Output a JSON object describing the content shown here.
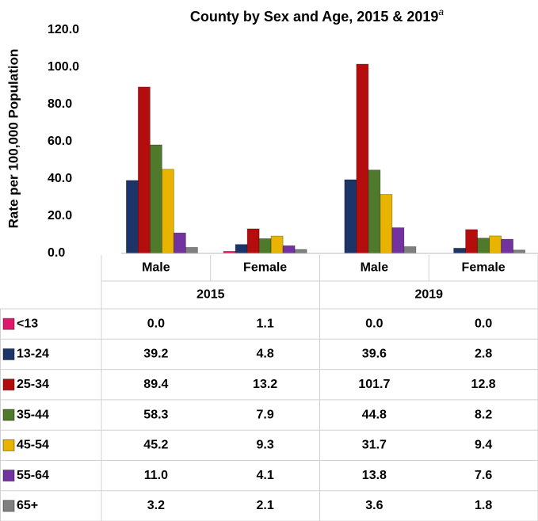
{
  "chart_data": {
    "type": "bar",
    "title": "County by Sex and Age, 2015 & 2019",
    "title_superscript": "a",
    "y_label": "Rate per 100,000 Population",
    "categories": [
      "Male",
      "Female",
      "Male",
      "Female"
    ],
    "groups": [
      "2015",
      "2019"
    ],
    "ylim": [
      0,
      120
    ],
    "yticks": [
      {
        "value": 0,
        "label": "0.0"
      },
      {
        "value": 20,
        "label": "20.0"
      },
      {
        "value": 40,
        "label": "40.0"
      },
      {
        "value": 60,
        "label": "60.0"
      },
      {
        "value": 80,
        "label": "80.0"
      },
      {
        "value": 100,
        "label": "100.0"
      },
      {
        "value": 120,
        "label": "120.0"
      }
    ],
    "series": [
      {
        "name": "<13",
        "color": "#e0186c",
        "values": [
          0,
          1.1,
          0,
          0
        ],
        "value_labels": [
          "0.0",
          "1.1",
          "0.0",
          "0.0"
        ]
      },
      {
        "name": "13-24",
        "color": "#1c3468",
        "values": [
          39.2,
          4.8,
          39.6,
          2.8
        ],
        "value_labels": [
          "39.2",
          "4.8",
          "39.6",
          "2.8"
        ]
      },
      {
        "name": "25-34",
        "color": "#b50d0d",
        "values": [
          89.4,
          13.2,
          101.7,
          12.8
        ],
        "value_labels": [
          "89.4",
          "13.2",
          "101.7",
          "12.8"
        ]
      },
      {
        "name": "35-44",
        "color": "#4f7a2c",
        "values": [
          58.3,
          7.9,
          44.8,
          8.2
        ],
        "value_labels": [
          "58.3",
          "7.9",
          "44.8",
          "8.2"
        ]
      },
      {
        "name": "45-54",
        "color": "#e8b400",
        "values": [
          45.2,
          9.3,
          31.7,
          9.4
        ],
        "value_labels": [
          "45.2",
          "9.3",
          "31.7",
          "9.4"
        ]
      },
      {
        "name": "55-64",
        "color": "#7232a0",
        "values": [
          11.0,
          4.1,
          13.8,
          7.6
        ],
        "value_labels": [
          "11.0",
          "4.1",
          "13.8",
          "7.6"
        ]
      },
      {
        "name": "65+",
        "color": "#7f7f7f",
        "values": [
          3.2,
          2.1,
          3.6,
          1.8
        ],
        "value_labels": [
          "3.2",
          "2.1",
          "3.6",
          "1.8"
        ]
      }
    ]
  }
}
